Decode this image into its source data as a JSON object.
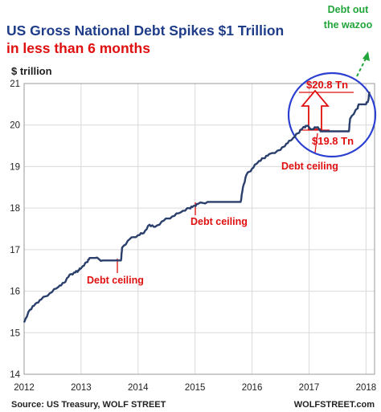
{
  "chart_data": {
    "type": "line",
    "title": "US Gross National Debt Spikes $1 Trillion",
    "subtitle": "in less than 6 months",
    "ylabel": "$ trillion",
    "xlabel": "",
    "source": "Source: US Treasury, WOLF STREET",
    "watermark": "WOLFSTREET.com",
    "xlim": [
      2012,
      2018.15
    ],
    "ylim": [
      14,
      21
    ],
    "x_ticks": [
      "2012",
      "2013",
      "2014",
      "2015",
      "2016",
      "2017",
      "2018"
    ],
    "y_ticks": [
      "14",
      "15",
      "16",
      "17",
      "18",
      "19",
      "20",
      "21"
    ],
    "grid": true,
    "series": [
      {
        "color": "#2a3f6b",
        "x": [
          2012.0,
          2012.1,
          2012.2,
          2012.3,
          2012.45,
          2012.6,
          2012.7,
          2012.8,
          2012.9,
          2012.95,
          2013.0,
          2013.1,
          2013.15,
          2013.25,
          2013.38,
          2013.5,
          2013.7,
          2013.72,
          2013.85,
          2014.0,
          2014.1,
          2014.2,
          2014.3,
          2014.45,
          2014.6,
          2014.75,
          2014.9,
          2014.97,
          2015.05,
          2015.22,
          2015.5,
          2015.8,
          2015.84,
          2015.9,
          2016.0,
          2016.1,
          2016.2,
          2016.3,
          2016.5,
          2016.6,
          2016.7,
          2016.8,
          2016.9,
          2016.96,
          2017.05,
          2017.15,
          2017.2,
          2017.4,
          2017.55,
          2017.7,
          2017.72,
          2017.85,
          2017.87,
          2018.0,
          2018.04,
          2018.06
        ],
        "values": [
          15.25,
          15.55,
          15.7,
          15.8,
          15.95,
          16.1,
          16.2,
          16.4,
          16.45,
          16.5,
          16.55,
          16.7,
          16.8,
          16.8,
          16.74,
          16.74,
          16.74,
          17.05,
          17.25,
          17.35,
          17.4,
          17.6,
          17.55,
          17.7,
          17.8,
          17.9,
          18.0,
          18.05,
          18.1,
          18.15,
          18.15,
          18.15,
          18.5,
          18.8,
          18.95,
          19.1,
          19.2,
          19.3,
          19.4,
          19.55,
          19.65,
          19.8,
          19.95,
          19.98,
          19.9,
          19.95,
          19.85,
          19.85,
          19.85,
          19.85,
          20.15,
          20.4,
          20.5,
          20.5,
          20.6,
          20.8
        ]
      }
    ],
    "annotations": {
      "debt_ceiling_1": "Debt ceiling",
      "debt_ceiling_2": "Debt ceiling",
      "debt_ceiling_3": "Debt ceiling",
      "high_label": "$20.8 Tn",
      "low_label": "$19.8 Tn",
      "wazoo_line1": "Debt out",
      "wazoo_line2": "the wazoo"
    },
    "colors": {
      "title": "#1f3c88",
      "subtitle": "#e01010",
      "annotation_red": "#e01010",
      "annotation_green": "#22a53a",
      "circle": "#2b3fd1",
      "grid": "#d9d9d9"
    }
  }
}
